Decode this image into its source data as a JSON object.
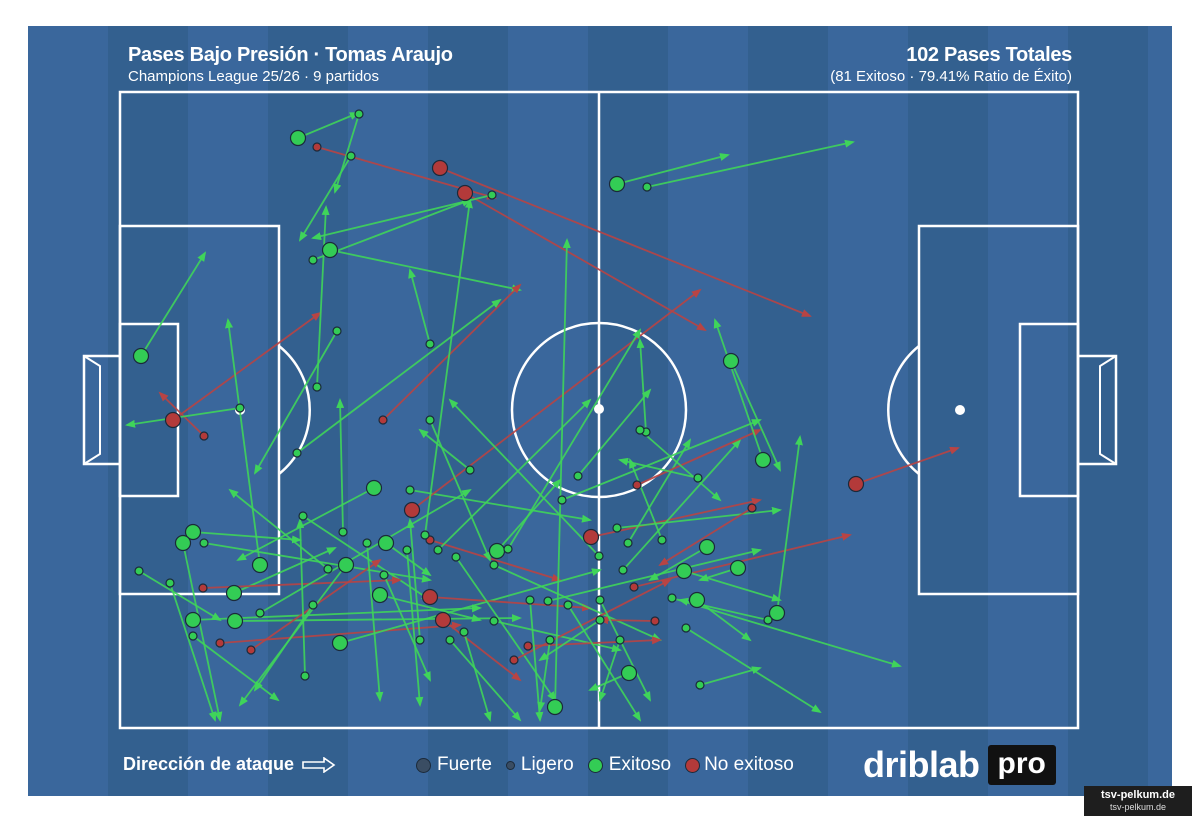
{
  "header": {
    "title": "Pases Bajo Presión · Tomas Araujo",
    "subtitle": "Champions League 25/26 · 9 partidos",
    "total_passes": "102 Pases Totales",
    "success_ratio": "(81 Exitoso · 79.41% Ratio de Éxito)"
  },
  "footer": {
    "attack_direction": "Dirección de ataque",
    "legend": {
      "strong": "Fuerte",
      "light": "Ligero",
      "successful": "Exitoso",
      "unsuccessful": "No exitoso"
    },
    "brand": "driblab",
    "brand_pro": "pro"
  },
  "watermark": {
    "line1": "tsv-pelkum.de",
    "line2": "tsv-pelkum.de"
  },
  "colors": {
    "pitch": "#3a679c",
    "stripe_dark": "#33608f",
    "success": "#33cc55",
    "success_line": "#3fd45a",
    "fail": "#b33a3a",
    "fail_line": "#b84444",
    "marker_stroke": "#1b2a3a"
  },
  "passes": [
    {
      "x1": 298,
      "y1": 138,
      "x2": 358,
      "y2": 113,
      "r": "strong",
      "ok": true
    },
    {
      "x1": 317,
      "y1": 147,
      "x2": 495,
      "y2": 198,
      "r": "light",
      "ok": false
    },
    {
      "x1": 359,
      "y1": 114,
      "x2": 335,
      "y2": 192,
      "r": "light",
      "ok": true
    },
    {
      "x1": 351,
      "y1": 156,
      "x2": 300,
      "y2": 240,
      "r": "light",
      "ok": true
    },
    {
      "x1": 440,
      "y1": 168,
      "x2": 810,
      "y2": 316,
      "r": "strong",
      "ok": false
    },
    {
      "x1": 465,
      "y1": 193,
      "x2": 705,
      "y2": 330,
      "r": "strong",
      "ok": false
    },
    {
      "x1": 492,
      "y1": 195,
      "x2": 313,
      "y2": 238,
      "r": "light",
      "ok": true
    },
    {
      "x1": 617,
      "y1": 184,
      "x2": 728,
      "y2": 155,
      "r": "strong",
      "ok": true
    },
    {
      "x1": 647,
      "y1": 187,
      "x2": 853,
      "y2": 142,
      "r": "light",
      "ok": true
    },
    {
      "x1": 330,
      "y1": 250,
      "x2": 520,
      "y2": 290,
      "r": "strong",
      "ok": true
    },
    {
      "x1": 313,
      "y1": 260,
      "x2": 470,
      "y2": 200,
      "r": "light",
      "ok": true
    },
    {
      "x1": 141,
      "y1": 356,
      "x2": 205,
      "y2": 253,
      "r": "strong",
      "ok": true
    },
    {
      "x1": 173,
      "y1": 420,
      "x2": 320,
      "y2": 313,
      "r": "strong",
      "ok": false
    },
    {
      "x1": 204,
      "y1": 436,
      "x2": 160,
      "y2": 393,
      "r": "light",
      "ok": false
    },
    {
      "x1": 240,
      "y1": 408,
      "x2": 127,
      "y2": 425,
      "r": "light",
      "ok": true
    },
    {
      "x1": 337,
      "y1": 331,
      "x2": 255,
      "y2": 473,
      "r": "light",
      "ok": true
    },
    {
      "x1": 317,
      "y1": 387,
      "x2": 326,
      "y2": 207,
      "r": "light",
      "ok": true
    },
    {
      "x1": 430,
      "y1": 344,
      "x2": 410,
      "y2": 270,
      "r": "light",
      "ok": true
    },
    {
      "x1": 383,
      "y1": 420,
      "x2": 520,
      "y2": 285,
      "r": "light",
      "ok": false
    },
    {
      "x1": 297,
      "y1": 453,
      "x2": 500,
      "y2": 300,
      "r": "light",
      "ok": true
    },
    {
      "x1": 374,
      "y1": 488,
      "x2": 238,
      "y2": 560,
      "r": "strong",
      "ok": true
    },
    {
      "x1": 410,
      "y1": 490,
      "x2": 590,
      "y2": 520,
      "r": "light",
      "ok": true
    },
    {
      "x1": 412,
      "y1": 510,
      "x2": 700,
      "y2": 290,
      "r": "strong",
      "ok": false
    },
    {
      "x1": 430,
      "y1": 540,
      "x2": 560,
      "y2": 580,
      "r": "light",
      "ok": false
    },
    {
      "x1": 386,
      "y1": 543,
      "x2": 430,
      "y2": 575,
      "r": "strong",
      "ok": true
    },
    {
      "x1": 303,
      "y1": 516,
      "x2": 430,
      "y2": 600,
      "r": "light",
      "ok": true
    },
    {
      "x1": 234,
      "y1": 593,
      "x2": 335,
      "y2": 548,
      "r": "strong",
      "ok": true
    },
    {
      "x1": 260,
      "y1": 565,
      "x2": 228,
      "y2": 320,
      "r": "strong",
      "ok": true
    },
    {
      "x1": 193,
      "y1": 532,
      "x2": 300,
      "y2": 540,
      "r": "strong",
      "ok": true
    },
    {
      "x1": 183,
      "y1": 543,
      "x2": 220,
      "y2": 720,
      "r": "strong",
      "ok": true
    },
    {
      "x1": 204,
      "y1": 543,
      "x2": 430,
      "y2": 580,
      "r": "light",
      "ok": true
    },
    {
      "x1": 139,
      "y1": 571,
      "x2": 220,
      "y2": 620,
      "r": "light",
      "ok": true
    },
    {
      "x1": 170,
      "y1": 583,
      "x2": 215,
      "y2": 720,
      "r": "light",
      "ok": true
    },
    {
      "x1": 193,
      "y1": 620,
      "x2": 480,
      "y2": 608,
      "r": "strong",
      "ok": true
    },
    {
      "x1": 193,
      "y1": 636,
      "x2": 278,
      "y2": 700,
      "r": "light",
      "ok": true
    },
    {
      "x1": 203,
      "y1": 588,
      "x2": 400,
      "y2": 580,
      "r": "light",
      "ok": false
    },
    {
      "x1": 235,
      "y1": 621,
      "x2": 520,
      "y2": 618,
      "r": "strong",
      "ok": true
    },
    {
      "x1": 220,
      "y1": 643,
      "x2": 460,
      "y2": 625,
      "r": "light",
      "ok": false
    },
    {
      "x1": 251,
      "y1": 650,
      "x2": 380,
      "y2": 560,
      "r": "light",
      "ok": false
    },
    {
      "x1": 260,
      "y1": 613,
      "x2": 470,
      "y2": 490,
      "r": "light",
      "ok": true
    },
    {
      "x1": 340,
      "y1": 643,
      "x2": 600,
      "y2": 570,
      "r": "strong",
      "ok": true
    },
    {
      "x1": 346,
      "y1": 565,
      "x2": 240,
      "y2": 705,
      "r": "strong",
      "ok": true
    },
    {
      "x1": 313,
      "y1": 605,
      "x2": 255,
      "y2": 690,
      "r": "light",
      "ok": true
    },
    {
      "x1": 328,
      "y1": 569,
      "x2": 230,
      "y2": 490,
      "r": "light",
      "ok": true
    },
    {
      "x1": 380,
      "y1": 595,
      "x2": 480,
      "y2": 620,
      "r": "strong",
      "ok": true
    },
    {
      "x1": 430,
      "y1": 597,
      "x2": 590,
      "y2": 608,
      "r": "strong",
      "ok": false
    },
    {
      "x1": 443,
      "y1": 620,
      "x2": 520,
      "y2": 680,
      "r": "strong",
      "ok": false
    },
    {
      "x1": 456,
      "y1": 557,
      "x2": 555,
      "y2": 700,
      "r": "light",
      "ok": true
    },
    {
      "x1": 497,
      "y1": 551,
      "x2": 560,
      "y2": 480,
      "r": "strong",
      "ok": true
    },
    {
      "x1": 508,
      "y1": 549,
      "x2": 640,
      "y2": 330,
      "r": "light",
      "ok": true
    },
    {
      "x1": 494,
      "y1": 565,
      "x2": 660,
      "y2": 640,
      "r": "light",
      "ok": true
    },
    {
      "x1": 494,
      "y1": 621,
      "x2": 620,
      "y2": 650,
      "r": "light",
      "ok": true
    },
    {
      "x1": 514,
      "y1": 660,
      "x2": 670,
      "y2": 580,
      "r": "light",
      "ok": false
    },
    {
      "x1": 528,
      "y1": 646,
      "x2": 660,
      "y2": 640,
      "r": "light",
      "ok": false
    },
    {
      "x1": 555,
      "y1": 707,
      "x2": 567,
      "y2": 240,
      "r": "strong",
      "ok": true
    },
    {
      "x1": 548,
      "y1": 601,
      "x2": 760,
      "y2": 550,
      "r": "light",
      "ok": true
    },
    {
      "x1": 562,
      "y1": 500,
      "x2": 760,
      "y2": 420,
      "r": "light",
      "ok": true
    },
    {
      "x1": 591,
      "y1": 537,
      "x2": 760,
      "y2": 500,
      "r": "strong",
      "ok": false
    },
    {
      "x1": 599,
      "y1": 556,
      "x2": 450,
      "y2": 400,
      "r": "light",
      "ok": true
    },
    {
      "x1": 578,
      "y1": 476,
      "x2": 650,
      "y2": 390,
      "r": "light",
      "ok": true
    },
    {
      "x1": 617,
      "y1": 528,
      "x2": 780,
      "y2": 510,
      "r": "light",
      "ok": true
    },
    {
      "x1": 628,
      "y1": 543,
      "x2": 690,
      "y2": 440,
      "r": "light",
      "ok": true
    },
    {
      "x1": 629,
      "y1": 673,
      "x2": 590,
      "y2": 690,
      "r": "strong",
      "ok": true
    },
    {
      "x1": 623,
      "y1": 570,
      "x2": 740,
      "y2": 440,
      "r": "light",
      "ok": true
    },
    {
      "x1": 634,
      "y1": 587,
      "x2": 850,
      "y2": 535,
      "r": "light",
      "ok": false
    },
    {
      "x1": 637,
      "y1": 485,
      "x2": 760,
      "y2": 430,
      "r": "light",
      "ok": false
    },
    {
      "x1": 646,
      "y1": 432,
      "x2": 640,
      "y2": 340,
      "r": "light",
      "ok": true
    },
    {
      "x1": 655,
      "y1": 621,
      "x2": 600,
      "y2": 620,
      "r": "light",
      "ok": false
    },
    {
      "x1": 662,
      "y1": 540,
      "x2": 630,
      "y2": 460,
      "r": "light",
      "ok": true
    },
    {
      "x1": 672,
      "y1": 598,
      "x2": 900,
      "y2": 666,
      "r": "light",
      "ok": true
    },
    {
      "x1": 684,
      "y1": 571,
      "x2": 780,
      "y2": 600,
      "r": "strong",
      "ok": true
    },
    {
      "x1": 686,
      "y1": 628,
      "x2": 820,
      "y2": 712,
      "r": "light",
      "ok": true
    },
    {
      "x1": 697,
      "y1": 600,
      "x2": 750,
      "y2": 640,
      "r": "strong",
      "ok": true
    },
    {
      "x1": 698,
      "y1": 478,
      "x2": 620,
      "y2": 460,
      "r": "light",
      "ok": true
    },
    {
      "x1": 700,
      "y1": 685,
      "x2": 760,
      "y2": 668,
      "r": "light",
      "ok": true
    },
    {
      "x1": 707,
      "y1": 547,
      "x2": 650,
      "y2": 580,
      "r": "strong",
      "ok": true
    },
    {
      "x1": 731,
      "y1": 361,
      "x2": 780,
      "y2": 470,
      "r": "strong",
      "ok": true
    },
    {
      "x1": 738,
      "y1": 568,
      "x2": 700,
      "y2": 580,
      "r": "strong",
      "ok": true
    },
    {
      "x1": 752,
      "y1": 508,
      "x2": 660,
      "y2": 565,
      "r": "light",
      "ok": false
    },
    {
      "x1": 763,
      "y1": 460,
      "x2": 715,
      "y2": 320,
      "r": "strong",
      "ok": true
    },
    {
      "x1": 777,
      "y1": 613,
      "x2": 800,
      "y2": 437,
      "r": "strong",
      "ok": true
    },
    {
      "x1": 856,
      "y1": 484,
      "x2": 958,
      "y2": 448,
      "r": "strong",
      "ok": false
    },
    {
      "x1": 768,
      "y1": 620,
      "x2": 680,
      "y2": 600,
      "r": "light",
      "ok": true
    },
    {
      "x1": 420,
      "y1": 640,
      "x2": 410,
      "y2": 520,
      "r": "light",
      "ok": true
    },
    {
      "x1": 464,
      "y1": 632,
      "x2": 490,
      "y2": 720,
      "r": "light",
      "ok": true
    },
    {
      "x1": 407,
      "y1": 550,
      "x2": 420,
      "y2": 705,
      "r": "light",
      "ok": true
    },
    {
      "x1": 367,
      "y1": 543,
      "x2": 380,
      "y2": 700,
      "r": "light",
      "ok": true
    },
    {
      "x1": 343,
      "y1": 532,
      "x2": 340,
      "y2": 400,
      "r": "light",
      "ok": true
    },
    {
      "x1": 305,
      "y1": 676,
      "x2": 300,
      "y2": 520,
      "r": "light",
      "ok": true
    },
    {
      "x1": 425,
      "y1": 535,
      "x2": 470,
      "y2": 200,
      "r": "light",
      "ok": true
    },
    {
      "x1": 438,
      "y1": 550,
      "x2": 590,
      "y2": 400,
      "r": "light",
      "ok": true
    },
    {
      "x1": 384,
      "y1": 575,
      "x2": 430,
      "y2": 680,
      "r": "light",
      "ok": true
    },
    {
      "x1": 450,
      "y1": 640,
      "x2": 520,
      "y2": 720,
      "r": "light",
      "ok": true
    },
    {
      "x1": 530,
      "y1": 600,
      "x2": 540,
      "y2": 720,
      "r": "light",
      "ok": true
    },
    {
      "x1": 550,
      "y1": 640,
      "x2": 540,
      "y2": 710,
      "r": "light",
      "ok": true
    },
    {
      "x1": 568,
      "y1": 605,
      "x2": 640,
      "y2": 720,
      "r": "light",
      "ok": true
    },
    {
      "x1": 600,
      "y1": 600,
      "x2": 650,
      "y2": 700,
      "r": "light",
      "ok": true
    },
    {
      "x1": 600,
      "y1": 620,
      "x2": 540,
      "y2": 660,
      "r": "light",
      "ok": true
    },
    {
      "x1": 620,
      "y1": 640,
      "x2": 600,
      "y2": 700,
      "r": "light",
      "ok": true
    },
    {
      "x1": 430,
      "y1": 420,
      "x2": 490,
      "y2": 560,
      "r": "light",
      "ok": true
    },
    {
      "x1": 470,
      "y1": 470,
      "x2": 420,
      "y2": 430,
      "r": "light",
      "ok": true
    },
    {
      "x1": 640,
      "y1": 430,
      "x2": 720,
      "y2": 500,
      "r": "light",
      "ok": true
    }
  ]
}
